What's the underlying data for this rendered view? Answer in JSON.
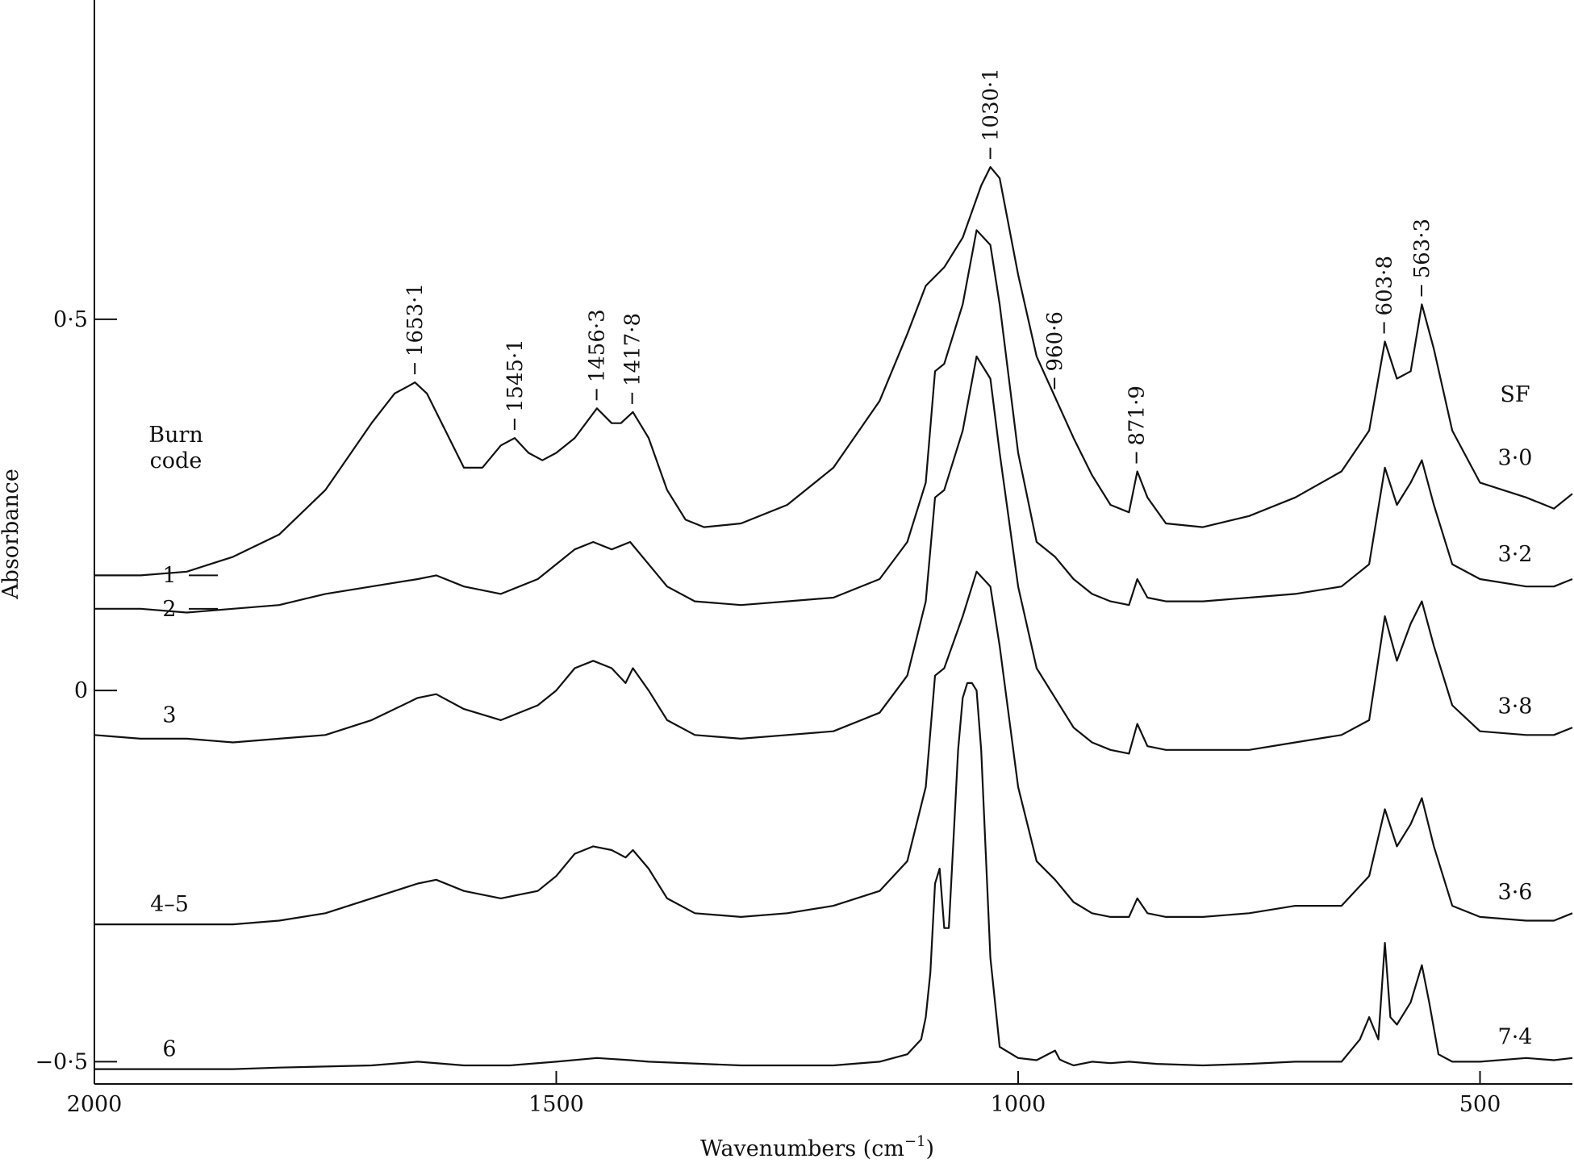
{
  "chart_data": {
    "type": "line",
    "xlabel": "Wavenumbers (cm",
    "xlabel_sup": "−1",
    "xlabel_close": ")",
    "ylabel": "Absorbance",
    "xlim": [
      2000,
      400
    ],
    "ylim": [
      -0.53,
      0.93
    ],
    "x_reversed": true,
    "grid": false,
    "x_ticks": [
      {
        "value": 2000,
        "label": "2000"
      },
      {
        "value": 1500,
        "label": "1500"
      },
      {
        "value": 1000,
        "label": "1000"
      },
      {
        "value": 500,
        "label": "500"
      }
    ],
    "y_ticks": [
      {
        "value": 0.5,
        "label": "0·5"
      },
      {
        "value": 0,
        "label": "0"
      },
      {
        "value": -0.5,
        "label": "−0·5"
      }
    ],
    "burn_code_header": [
      "Burn",
      "code"
    ],
    "sf_header": "SF",
    "peak_annotations": [
      {
        "x": 1653.1,
        "y": 0.415,
        "label": "1653·1"
      },
      {
        "x": 1545.1,
        "y": 0.34,
        "label": "1545·1"
      },
      {
        "x": 1456.3,
        "y": 0.38,
        "label": "1456·3"
      },
      {
        "x": 1417.8,
        "y": 0.375,
        "label": "1417·8"
      },
      {
        "x": 1030.1,
        "y": 0.705,
        "label": "1030·1"
      },
      {
        "x": 960.6,
        "y": 0.395,
        "label": "960·6"
      },
      {
        "x": 871.9,
        "y": 0.295,
        "label": "871·9"
      },
      {
        "x": 603.8,
        "y": 0.47,
        "label": "603·8"
      },
      {
        "x": 563.3,
        "y": 0.52,
        "label": "563·3"
      }
    ],
    "series": [
      {
        "burn_code": "1",
        "sf": "3·0",
        "x": [
          2000,
          1950,
          1900,
          1850,
          1800,
          1750,
          1700,
          1675,
          1660,
          1653,
          1640,
          1620,
          1600,
          1580,
          1560,
          1545,
          1530,
          1515,
          1500,
          1480,
          1456,
          1440,
          1430,
          1417,
          1400,
          1380,
          1360,
          1340,
          1300,
          1250,
          1200,
          1150,
          1120,
          1100,
          1080,
          1060,
          1040,
          1030,
          1020,
          1000,
          980,
          960,
          940,
          920,
          900,
          880,
          871,
          860,
          840,
          800,
          750,
          700,
          650,
          620,
          603,
          590,
          575,
          563,
          550,
          530,
          500,
          450,
          420,
          400
        ],
        "y": [
          0.155,
          0.155,
          0.16,
          0.18,
          0.21,
          0.27,
          0.36,
          0.4,
          0.41,
          0.415,
          0.4,
          0.35,
          0.3,
          0.3,
          0.33,
          0.34,
          0.32,
          0.31,
          0.32,
          0.34,
          0.38,
          0.36,
          0.36,
          0.375,
          0.34,
          0.27,
          0.23,
          0.22,
          0.225,
          0.25,
          0.3,
          0.39,
          0.48,
          0.545,
          0.57,
          0.61,
          0.68,
          0.705,
          0.69,
          0.56,
          0.45,
          0.395,
          0.34,
          0.29,
          0.25,
          0.24,
          0.295,
          0.26,
          0.225,
          0.22,
          0.235,
          0.26,
          0.295,
          0.35,
          0.47,
          0.42,
          0.43,
          0.52,
          0.46,
          0.35,
          0.28,
          0.26,
          0.245,
          0.265
        ]
      },
      {
        "burn_code": "2",
        "sf": "3·2",
        "x": [
          2000,
          1950,
          1900,
          1850,
          1800,
          1750,
          1700,
          1650,
          1630,
          1600,
          1560,
          1520,
          1500,
          1480,
          1460,
          1440,
          1420,
          1400,
          1380,
          1350,
          1300,
          1250,
          1200,
          1150,
          1120,
          1100,
          1090,
          1080,
          1060,
          1045,
          1030,
          1020,
          1000,
          980,
          960,
          940,
          920,
          900,
          880,
          871,
          860,
          840,
          800,
          750,
          700,
          650,
          620,
          603,
          590,
          575,
          563,
          550,
          530,
          500,
          450,
          420,
          400
        ],
        "y": [
          0.11,
          0.11,
          0.105,
          0.11,
          0.115,
          0.13,
          0.14,
          0.15,
          0.155,
          0.14,
          0.13,
          0.15,
          0.17,
          0.19,
          0.2,
          0.19,
          0.2,
          0.17,
          0.14,
          0.12,
          0.115,
          0.12,
          0.125,
          0.15,
          0.2,
          0.28,
          0.43,
          0.44,
          0.52,
          0.62,
          0.6,
          0.52,
          0.32,
          0.2,
          0.18,
          0.15,
          0.13,
          0.12,
          0.115,
          0.15,
          0.125,
          0.12,
          0.12,
          0.125,
          0.13,
          0.14,
          0.17,
          0.3,
          0.25,
          0.28,
          0.31,
          0.25,
          0.17,
          0.15,
          0.14,
          0.14,
          0.15
        ]
      },
      {
        "burn_code": "3",
        "sf": "3·8",
        "x": [
          2000,
          1950,
          1900,
          1850,
          1800,
          1750,
          1700,
          1650,
          1630,
          1600,
          1560,
          1520,
          1500,
          1480,
          1460,
          1440,
          1425,
          1417,
          1400,
          1380,
          1350,
          1300,
          1250,
          1200,
          1150,
          1120,
          1100,
          1090,
          1080,
          1060,
          1045,
          1030,
          1020,
          1000,
          980,
          960,
          940,
          920,
          900,
          880,
          871,
          860,
          840,
          800,
          750,
          700,
          650,
          620,
          603,
          590,
          575,
          563,
          550,
          530,
          500,
          450,
          420,
          400
        ],
        "y": [
          -0.06,
          -0.065,
          -0.065,
          -0.07,
          -0.065,
          -0.06,
          -0.04,
          -0.01,
          -0.005,
          -0.025,
          -0.04,
          -0.02,
          0.0,
          0.03,
          0.04,
          0.03,
          0.01,
          0.03,
          0.0,
          -0.04,
          -0.06,
          -0.065,
          -0.06,
          -0.055,
          -0.03,
          0.02,
          0.12,
          0.26,
          0.27,
          0.35,
          0.45,
          0.42,
          0.32,
          0.14,
          0.03,
          -0.01,
          -0.05,
          -0.07,
          -0.08,
          -0.085,
          -0.045,
          -0.075,
          -0.08,
          -0.08,
          -0.08,
          -0.07,
          -0.06,
          -0.04,
          0.1,
          0.04,
          0.09,
          0.12,
          0.06,
          -0.02,
          -0.055,
          -0.06,
          -0.06,
          -0.05
        ]
      },
      {
        "burn_code": "4–5",
        "sf": "3·6",
        "x": [
          2000,
          1950,
          1900,
          1850,
          1800,
          1750,
          1700,
          1650,
          1630,
          1600,
          1560,
          1520,
          1500,
          1480,
          1460,
          1440,
          1425,
          1417,
          1400,
          1380,
          1350,
          1300,
          1250,
          1200,
          1150,
          1120,
          1100,
          1090,
          1080,
          1060,
          1045,
          1030,
          1020,
          1000,
          980,
          960,
          940,
          920,
          900,
          880,
          871,
          860,
          840,
          800,
          750,
          700,
          650,
          620,
          603,
          590,
          575,
          563,
          550,
          530,
          500,
          450,
          420,
          400
        ],
        "y": [
          -0.315,
          -0.315,
          -0.315,
          -0.315,
          -0.31,
          -0.3,
          -0.28,
          -0.26,
          -0.255,
          -0.27,
          -0.28,
          -0.27,
          -0.25,
          -0.22,
          -0.21,
          -0.215,
          -0.225,
          -0.215,
          -0.24,
          -0.28,
          -0.3,
          -0.305,
          -0.3,
          -0.29,
          -0.27,
          -0.23,
          -0.13,
          0.02,
          0.03,
          0.1,
          0.16,
          0.14,
          0.06,
          -0.13,
          -0.23,
          -0.255,
          -0.285,
          -0.3,
          -0.305,
          -0.305,
          -0.28,
          -0.3,
          -0.305,
          -0.305,
          -0.3,
          -0.29,
          -0.29,
          -0.25,
          -0.16,
          -0.21,
          -0.18,
          -0.145,
          -0.21,
          -0.29,
          -0.305,
          -0.31,
          -0.31,
          -0.3
        ]
      },
      {
        "burn_code": "6",
        "sf": "7·4",
        "x": [
          2000,
          1950,
          1900,
          1850,
          1800,
          1700,
          1650,
          1600,
          1550,
          1500,
          1456,
          1420,
          1400,
          1300,
          1200,
          1150,
          1120,
          1105,
          1100,
          1095,
          1090,
          1085,
          1080,
          1075,
          1070,
          1065,
          1060,
          1055,
          1050,
          1045,
          1040,
          1035,
          1030,
          1020,
          1000,
          980,
          960,
          955,
          950,
          940,
          920,
          900,
          880,
          850,
          800,
          750,
          700,
          650,
          630,
          620,
          610,
          603,
          597,
          590,
          575,
          563,
          555,
          545,
          530,
          500,
          450,
          420,
          400
        ],
        "y": [
          -0.51,
          -0.51,
          -0.51,
          -0.51,
          -0.508,
          -0.505,
          -0.5,
          -0.505,
          -0.505,
          -0.5,
          -0.495,
          -0.498,
          -0.5,
          -0.505,
          -0.505,
          -0.5,
          -0.49,
          -0.47,
          -0.44,
          -0.38,
          -0.26,
          -0.24,
          -0.32,
          -0.32,
          -0.2,
          -0.08,
          -0.01,
          0.01,
          0.01,
          0.0,
          -0.08,
          -0.22,
          -0.36,
          -0.48,
          -0.495,
          -0.498,
          -0.485,
          -0.497,
          -0.5,
          -0.505,
          -0.5,
          -0.502,
          -0.5,
          -0.503,
          -0.505,
          -0.503,
          -0.5,
          -0.5,
          -0.47,
          -0.44,
          -0.47,
          -0.34,
          -0.44,
          -0.45,
          -0.42,
          -0.37,
          -0.42,
          -0.49,
          -0.5,
          -0.5,
          -0.495,
          -0.498,
          -0.495
        ]
      }
    ]
  }
}
